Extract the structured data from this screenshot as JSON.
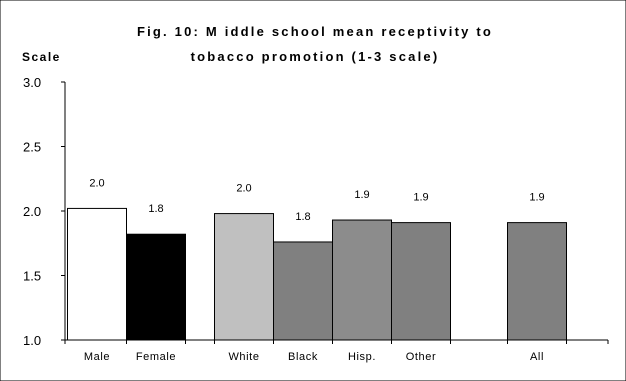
{
  "chart_data": {
    "type": "bar",
    "title_line1": "Fig. 10:  M iddle school mean receptivity to",
    "title_line2": "tobacco promotion (1-3 scale)",
    "ylabel": "Scale",
    "ylim": [
      1.0,
      3.0
    ],
    "yticks": [
      "1.0",
      "1.5",
      "2.0",
      "2.5",
      "3.0"
    ],
    "categories": [
      "Male",
      "Female",
      "White",
      "Black",
      "Hisp.",
      "Other",
      "All"
    ],
    "values": [
      2.02,
      1.82,
      1.98,
      1.76,
      1.93,
      1.91,
      1.91
    ],
    "value_labels": [
      "2.0",
      "1.8",
      "2.0",
      "1.8",
      "1.9",
      "1.9",
      "1.9"
    ],
    "colors": [
      "#ffffff",
      "#000000",
      "#c0c0c0",
      "#808080",
      "#8c8c8c",
      "#808080",
      "#808080"
    ],
    "grid": false,
    "legend": "none"
  }
}
